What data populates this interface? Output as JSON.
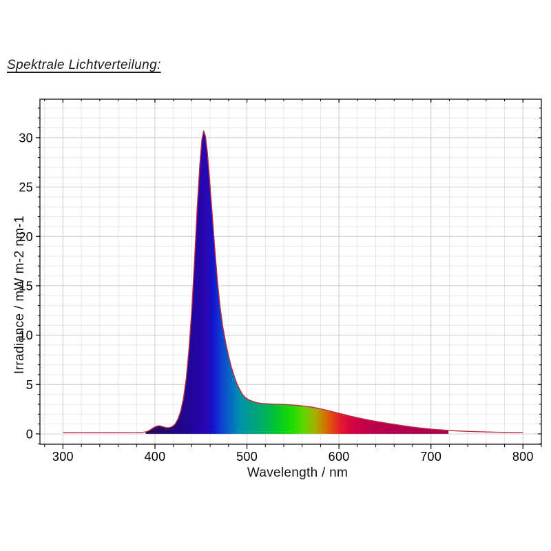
{
  "title": "Spektrale Lichtverteilung:",
  "chart_data": {
    "type": "area",
    "title": "",
    "xlabel": "Wavelength / nm",
    "ylabel": "Irradiance / mW m-2 nm-1",
    "xlim": [
      275,
      820
    ],
    "ylim": [
      -1.05,
      33.9
    ],
    "x_major_ticks": [
      300,
      400,
      500,
      600,
      700,
      800
    ],
    "y_major_ticks": [
      0,
      5,
      10,
      15,
      20,
      25,
      30
    ],
    "x_minor_step": 20,
    "y_minor_step": 1,
    "grid": true,
    "legend": "none",
    "line_color": "#bf2a3c",
    "minor_grid_color": "#e7e7e7",
    "major_grid_color": "#cdcdcd",
    "frame_color": "#000000",
    "fill_range": [
      390,
      719
    ],
    "peak": {
      "wavelength": 453,
      "value": 30.7
    },
    "spectrum_gradient": [
      [
        392,
        "#2d0a5e"
      ],
      [
        408,
        "#250b66"
      ],
      [
        420,
        "#22077c"
      ],
      [
        435,
        "#210695"
      ],
      [
        445,
        "#2106a5"
      ],
      [
        455,
        "#2a06b0"
      ],
      [
        463,
        "#1412cd"
      ],
      [
        472,
        "#0d40d0"
      ],
      [
        482,
        "#0769c4"
      ],
      [
        492,
        "#0090ad"
      ],
      [
        502,
        "#009c92"
      ],
      [
        515,
        "#00ab6d"
      ],
      [
        528,
        "#00bf3f"
      ],
      [
        540,
        "#0cd216"
      ],
      [
        550,
        "#22dd02"
      ],
      [
        562,
        "#5fd600"
      ],
      [
        574,
        "#a3b000"
      ],
      [
        584,
        "#cf7a00"
      ],
      [
        592,
        "#e14a10"
      ],
      [
        602,
        "#e5192e"
      ],
      [
        612,
        "#d60741"
      ],
      [
        628,
        "#c2014b"
      ],
      [
        650,
        "#b2004e"
      ],
      [
        690,
        "#a70250"
      ],
      [
        718,
        "#a30651"
      ]
    ],
    "points": [
      [
        300,
        0.12
      ],
      [
        320,
        0.12
      ],
      [
        345,
        0.12
      ],
      [
        365,
        0.12
      ],
      [
        380,
        0.13
      ],
      [
        386,
        0.16
      ],
      [
        390,
        0.2
      ],
      [
        394,
        0.35
      ],
      [
        398,
        0.6
      ],
      [
        402,
        0.78
      ],
      [
        405,
        0.82
      ],
      [
        408,
        0.74
      ],
      [
        412,
        0.63
      ],
      [
        416,
        0.63
      ],
      [
        419,
        0.76
      ],
      [
        422,
        1.0
      ],
      [
        425,
        1.5
      ],
      [
        428,
        2.3
      ],
      [
        431,
        3.6
      ],
      [
        434,
        5.6
      ],
      [
        437,
        8.6
      ],
      [
        440,
        12.5
      ],
      [
        443,
        17.5
      ],
      [
        446,
        23.0
      ],
      [
        449,
        27.5
      ],
      [
        451,
        29.8
      ],
      [
        453,
        30.7
      ],
      [
        455,
        30.1
      ],
      [
        457,
        28.5
      ],
      [
        459,
        26.2
      ],
      [
        462,
        22.5
      ],
      [
        465,
        18.8
      ],
      [
        468,
        15.4
      ],
      [
        471,
        12.7
      ],
      [
        474,
        10.7
      ],
      [
        477,
        9.2
      ],
      [
        480,
        7.9
      ],
      [
        483,
        6.8
      ],
      [
        486,
        5.9
      ],
      [
        489,
        5.1
      ],
      [
        492,
        4.5
      ],
      [
        495,
        4.0
      ],
      [
        498,
        3.7
      ],
      [
        502,
        3.45
      ],
      [
        506,
        3.3
      ],
      [
        511,
        3.15
      ],
      [
        517,
        3.07
      ],
      [
        524,
        3.03
      ],
      [
        532,
        3.0
      ],
      [
        540,
        2.98
      ],
      [
        548,
        2.93
      ],
      [
        556,
        2.88
      ],
      [
        563,
        2.8
      ],
      [
        570,
        2.72
      ],
      [
        577,
        2.6
      ],
      [
        584,
        2.45
      ],
      [
        591,
        2.3
      ],
      [
        598,
        2.13
      ],
      [
        605,
        1.97
      ],
      [
        612,
        1.81
      ],
      [
        619,
        1.66
      ],
      [
        626,
        1.52
      ],
      [
        633,
        1.39
      ],
      [
        640,
        1.27
      ],
      [
        648,
        1.14
      ],
      [
        656,
        1.02
      ],
      [
        664,
        0.9
      ],
      [
        672,
        0.79
      ],
      [
        680,
        0.69
      ],
      [
        688,
        0.6
      ],
      [
        696,
        0.52
      ],
      [
        704,
        0.46
      ],
      [
        712,
        0.4
      ],
      [
        719,
        0.36
      ],
      [
        726,
        0.31
      ],
      [
        736,
        0.27
      ],
      [
        748,
        0.23
      ],
      [
        762,
        0.19
      ],
      [
        778,
        0.16
      ],
      [
        800,
        0.13
      ]
    ]
  }
}
